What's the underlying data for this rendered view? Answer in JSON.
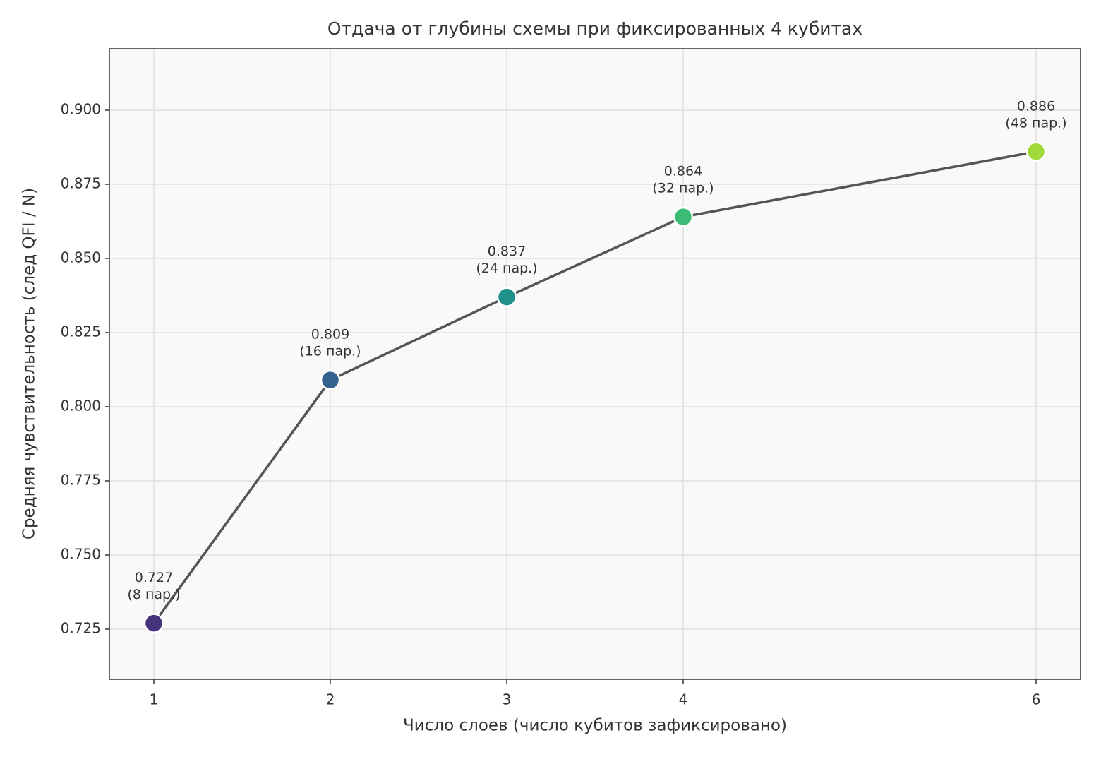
{
  "chart_data": {
    "type": "line",
    "title": "Отдача от глубины схемы при фиксированных 4 кубитах",
    "x_label": "Число слоев (число кубитов зафиксировано)",
    "y_label": "Средняя чувствительность (след QFI / N)",
    "x": [
      1,
      2,
      3,
      4,
      6
    ],
    "series": [
      {
        "name": "Средняя чувствительность",
        "color": "#555555",
        "values": [
          0.727,
          0.809,
          0.837,
          0.864,
          0.886
        ],
        "point_colors": [
          "#46337e",
          "#33638d",
          "#21918c",
          "#3bbb75",
          "#9fda3a"
        ],
        "point_notes": [
          "(8 пар.)",
          "(16 пар.)",
          "(24 пар.)",
          "(32 пар.)",
          "(48 пар.)"
        ]
      }
    ],
    "xlim": [
      0.748,
      6.252
    ],
    "ylim": [
      0.7081,
      0.9207
    ],
    "xticks": [
      1,
      2,
      3,
      4,
      6
    ],
    "yticks": [
      {
        "value": 0.725,
        "label": "0.725"
      },
      {
        "value": 0.75,
        "label": "0.750"
      },
      {
        "value": 0.775,
        "label": "0.775"
      },
      {
        "value": 0.8,
        "label": "0.800"
      },
      {
        "value": 0.825,
        "label": "0.825"
      },
      {
        "value": 0.85,
        "label": "0.850"
      },
      {
        "value": 0.875,
        "label": "0.875"
      },
      {
        "value": 0.9,
        "label": "0.900"
      }
    ],
    "grid": true
  }
}
